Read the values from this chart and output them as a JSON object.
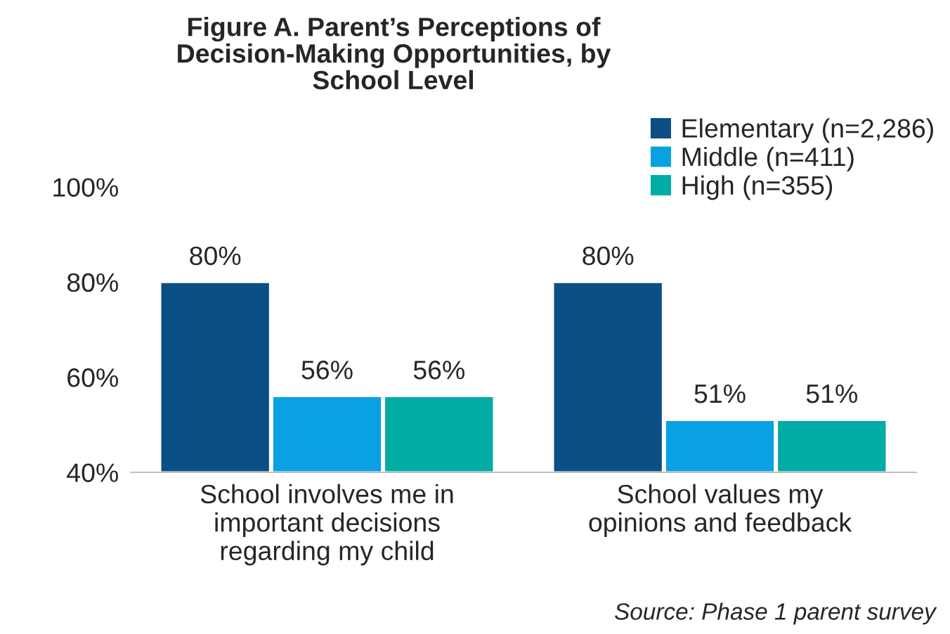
{
  "chart_data": {
    "type": "bar",
    "title": "Figure A. Parent’s Perceptions of\nDecision-Making Opportunities, by\nSchool Level",
    "categories": [
      "School involves me in\nimportant decisions\nregarding my child",
      "School values my\nopinions and feedback"
    ],
    "series": [
      {
        "name": "Elementary (n=2,286)",
        "color": "#0b4f85",
        "values": [
          80,
          80
        ]
      },
      {
        "name": "Middle (n=411)",
        "color": "#0aa1e2",
        "values": [
          56,
          51
        ]
      },
      {
        "name": "High (n=355)",
        "color": "#00aca4",
        "values": [
          56,
          51
        ]
      }
    ],
    "ylim": [
      40,
      100
    ],
    "yticks": [
      {
        "value": 40,
        "label": "40%"
      },
      {
        "value": 60,
        "label": "60%"
      },
      {
        "value": 80,
        "label": "80%"
      },
      {
        "value": 100,
        "label": "100%"
      }
    ],
    "value_labels": [
      [
        "80%",
        "80%"
      ],
      [
        "56%",
        "51%"
      ],
      [
        "56%",
        "51%"
      ]
    ],
    "grid": false,
    "legend": "top right",
    "annotations": [
      "Source: Phase 1 parent survey"
    ]
  }
}
